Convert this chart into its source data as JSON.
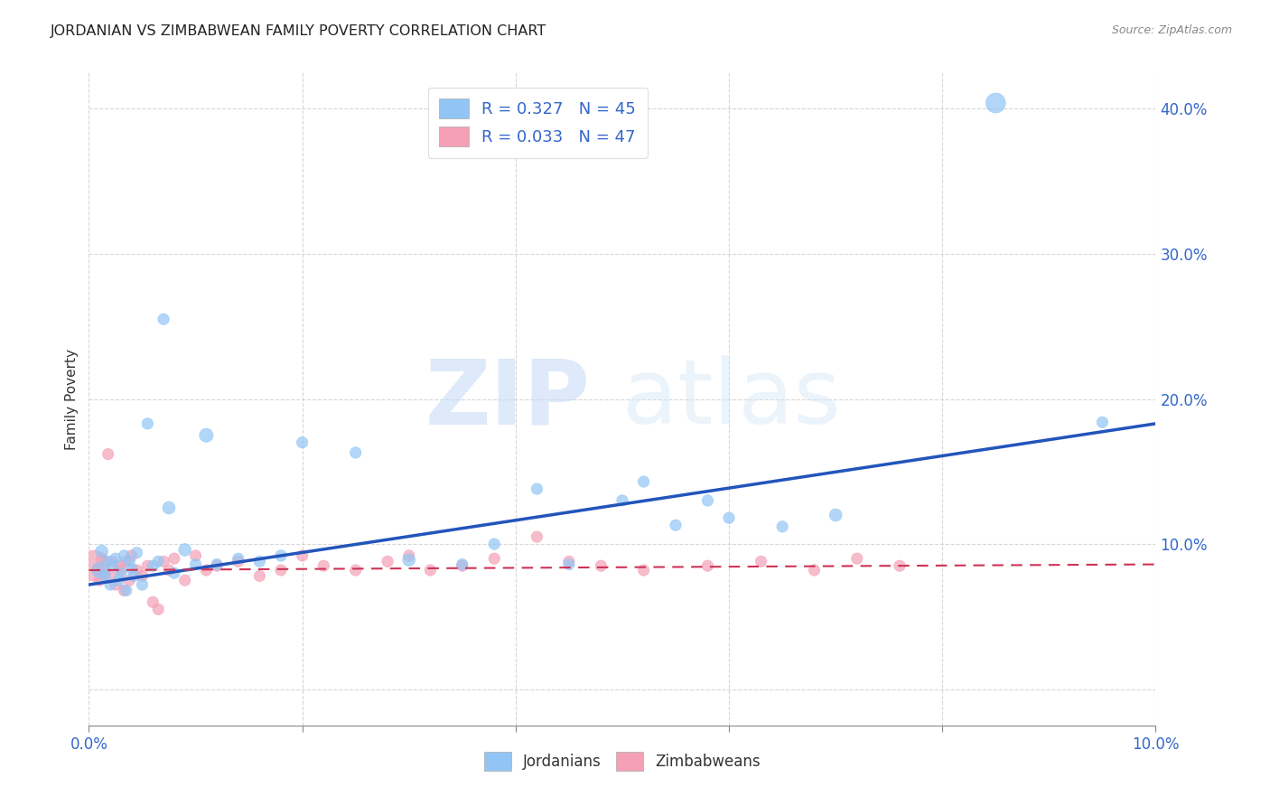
{
  "title": "JORDANIAN VS ZIMBABWEAN FAMILY POVERTY CORRELATION CHART",
  "source": "Source: ZipAtlas.com",
  "ylabel_label": "Family Poverty",
  "xlim": [
    0.0,
    0.1
  ],
  "ylim": [
    -0.025,
    0.425
  ],
  "xtick_positions": [
    0.0,
    0.02,
    0.04,
    0.06,
    0.08,
    0.1
  ],
  "xtick_labels_show": [
    "0.0%",
    "",
    "",
    "",
    "",
    "10.0%"
  ],
  "ytick_positions": [
    0.0,
    0.1,
    0.2,
    0.3,
    0.4
  ],
  "ytick_labels_show": [
    "",
    "10.0%",
    "20.0%",
    "30.0%",
    "40.0%"
  ],
  "grid_color": "#cccccc",
  "background_color": "#ffffff",
  "jordanian_color": "#92c5f5",
  "zimbabwean_color": "#f5a0b5",
  "jordan_line_color": "#2255bb",
  "zimb_line_color": "#cc3355",
  "jordan_line_x0": 0.0,
  "jordan_line_y0": 0.072,
  "jordan_line_x1": 0.1,
  "jordan_line_y1": 0.183,
  "zimb_line_x0": 0.0,
  "zimb_line_y0": 0.082,
  "zimb_line_x1": 0.1,
  "zimb_line_y1": 0.086,
  "jordan_R": 0.327,
  "jordan_N": 45,
  "zimb_R": 0.033,
  "zimb_N": 47,
  "legend_label_jordan": "Jordanians",
  "legend_label_zimb": "Zimbabweans",
  "watermark_zip": "ZIP",
  "watermark_atlas": "atlas",
  "jordanian_x": [
    0.001,
    0.0012,
    0.0015,
    0.0018,
    0.002,
    0.0022,
    0.0025,
    0.0028,
    0.003,
    0.0033,
    0.0035,
    0.0038,
    0.004,
    0.0042,
    0.0045,
    0.005,
    0.0055,
    0.006,
    0.0065,
    0.007,
    0.0075,
    0.008,
    0.009,
    0.01,
    0.011,
    0.012,
    0.014,
    0.016,
    0.018,
    0.02,
    0.025,
    0.03,
    0.035,
    0.038,
    0.042,
    0.045,
    0.05,
    0.052,
    0.055,
    0.058,
    0.06,
    0.065,
    0.07,
    0.085,
    0.095
  ],
  "jordanian_y": [
    0.082,
    0.095,
    0.078,
    0.088,
    0.072,
    0.085,
    0.09,
    0.075,
    0.08,
    0.092,
    0.068,
    0.088,
    0.083,
    0.078,
    0.094,
    0.072,
    0.183,
    0.085,
    0.088,
    0.255,
    0.125,
    0.08,
    0.096,
    0.086,
    0.175,
    0.086,
    0.09,
    0.088,
    0.092,
    0.17,
    0.163,
    0.089,
    0.086,
    0.1,
    0.138,
    0.086,
    0.13,
    0.143,
    0.113,
    0.13,
    0.118,
    0.112,
    0.12,
    0.404,
    0.184
  ],
  "jordanian_sizes": [
    150,
    100,
    80,
    80,
    80,
    80,
    80,
    80,
    80,
    80,
    80,
    80,
    80,
    80,
    80,
    80,
    80,
    80,
    80,
    80,
    100,
    80,
    100,
    80,
    120,
    80,
    80,
    80,
    80,
    80,
    80,
    100,
    80,
    80,
    80,
    80,
    80,
    80,
    80,
    80,
    80,
    80,
    100,
    250,
    80
  ],
  "zimbabwean_x": [
    0.0005,
    0.0008,
    0.001,
    0.0012,
    0.0015,
    0.0018,
    0.002,
    0.0022,
    0.0025,
    0.0028,
    0.003,
    0.0033,
    0.0035,
    0.0038,
    0.004,
    0.0045,
    0.005,
    0.0055,
    0.006,
    0.0065,
    0.007,
    0.0075,
    0.008,
    0.009,
    0.01,
    0.011,
    0.012,
    0.014,
    0.016,
    0.018,
    0.02,
    0.022,
    0.025,
    0.028,
    0.03,
    0.032,
    0.035,
    0.038,
    0.042,
    0.045,
    0.048,
    0.052,
    0.058,
    0.063,
    0.068,
    0.072,
    0.076
  ],
  "zimbabwean_y": [
    0.085,
    0.082,
    0.075,
    0.09,
    0.08,
    0.162,
    0.078,
    0.088,
    0.072,
    0.085,
    0.082,
    0.068,
    0.088,
    0.075,
    0.092,
    0.082,
    0.078,
    0.085,
    0.06,
    0.055,
    0.088,
    0.082,
    0.09,
    0.075,
    0.092,
    0.082,
    0.085,
    0.088,
    0.078,
    0.082,
    0.092,
    0.085,
    0.082,
    0.088,
    0.092,
    0.082,
    0.085,
    0.09,
    0.105,
    0.088,
    0.085,
    0.082,
    0.085,
    0.088,
    0.082,
    0.09,
    0.085
  ],
  "zimbabwean_sizes": [
    600,
    80,
    80,
    80,
    80,
    80,
    80,
    80,
    80,
    80,
    80,
    80,
    80,
    80,
    80,
    80,
    80,
    80,
    80,
    80,
    80,
    80,
    80,
    80,
    80,
    80,
    80,
    80,
    80,
    80,
    80,
    80,
    80,
    80,
    80,
    80,
    80,
    80,
    80,
    80,
    80,
    80,
    80,
    80,
    80,
    80,
    80
  ]
}
